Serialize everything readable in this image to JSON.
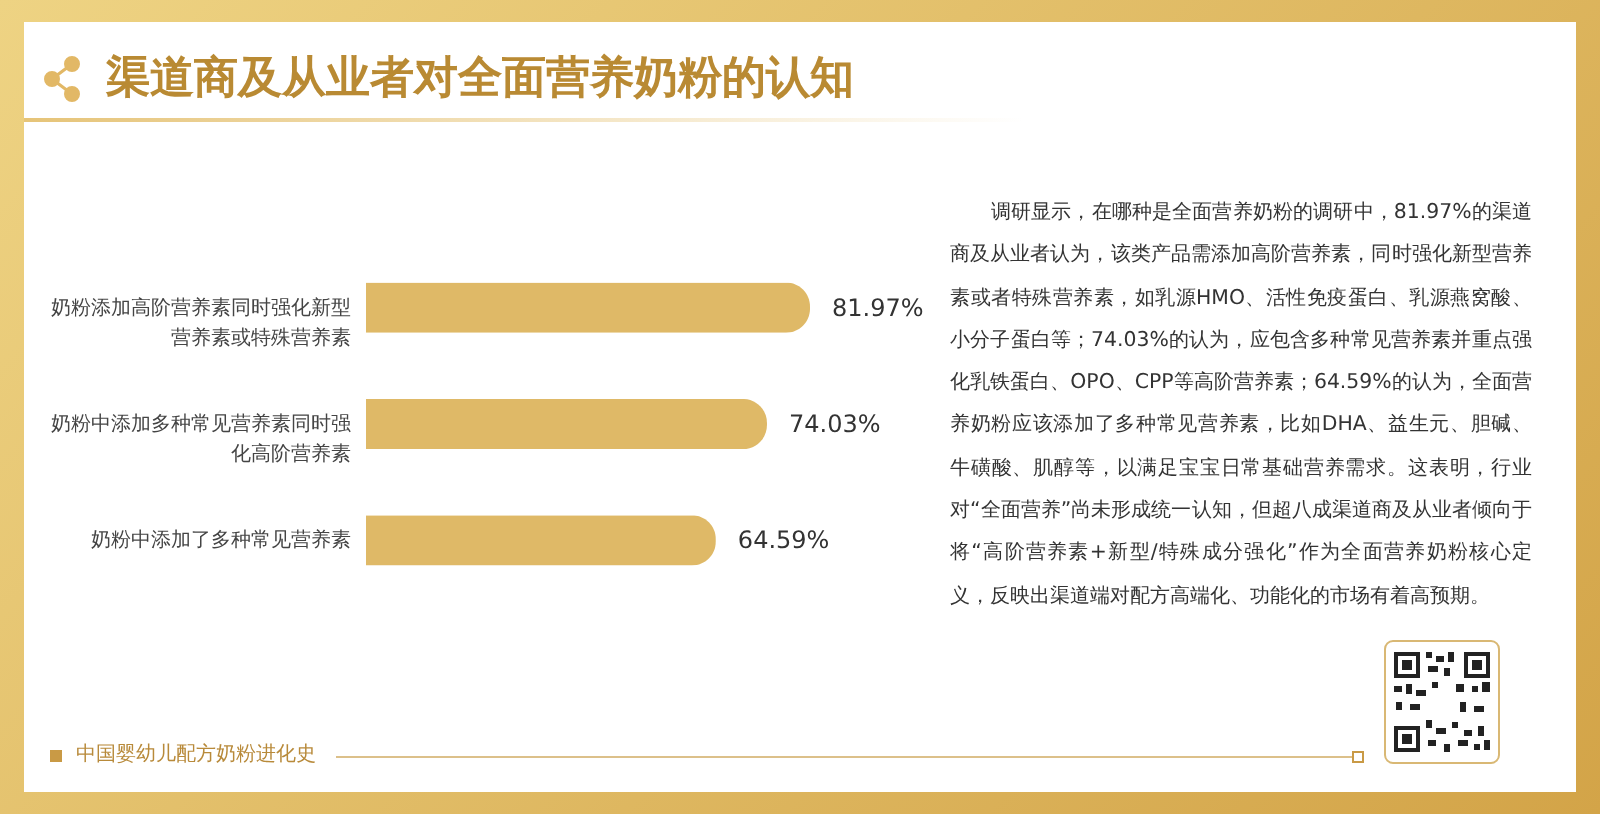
{
  "chart_data": {
    "type": "bar",
    "orientation": "horizontal",
    "title": "渠道商及从业者对全面营养奶粉的认知",
    "categories": [
      "奶粉添加高阶营养素同时强化新型营养素或特殊营养素",
      "奶粉中添加多种常见营养素同时强化高阶营养素",
      "奶粉中添加了多种常见营养素"
    ],
    "values": [
      81.97,
      74.03,
      64.59
    ],
    "value_labels": [
      "81.97%",
      "74.03%",
      "64.59%"
    ],
    "color": "#dfb967",
    "annotations": [
      "调研显示，在哪种是全面营养奶粉的调研中，81.97%的渠道商及从业者认为，该类产品需添加高阶营养素，同时强化新型营养素或者特殊营养素，如乳源HMO、活性免疫蛋白、乳源燕窝酸、小分子蛋白等；74.03%的认为，应包含多种常见营养素并重点强化乳铁蛋白、OPO、CPP等高阶营养素；64.59%的认为，全面营养奶粉应该添加了多种常见营养素，比如DHA、益生元、胆碱、牛磺酸、肌醇等，以满足宝宝日常基础营养需求。这表明，行业对“全面营养”尚未形成统一认知，但超八成渠道商及从业者倾向于将“高阶营养素+新型/特殊成分强化”作为全面营养奶粉核心定义，反映出渠道端对配方高端化、功能化的市场有着高预期。",
      "中国婴幼儿配方奶粉进化史"
    ]
  }
}
